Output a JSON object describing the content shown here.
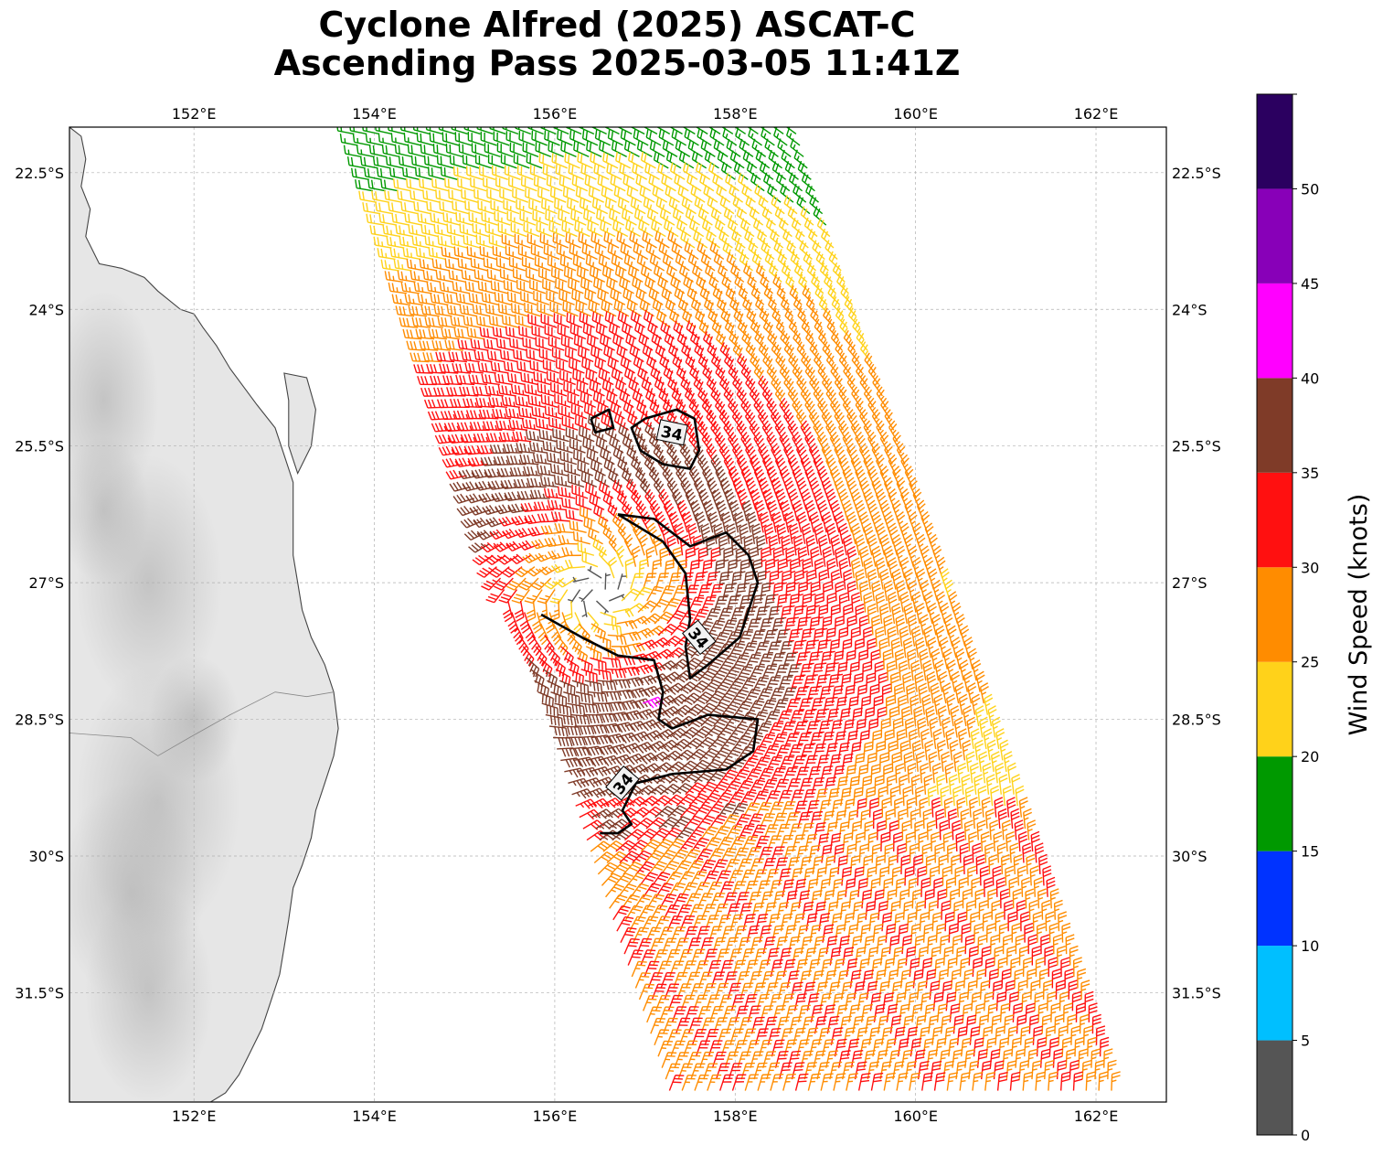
{
  "title": {
    "line1": "Cyclone Alfred (2025) ASCAT-C",
    "line2": "Ascending Pass 2025-03-05 11:41Z"
  },
  "map": {
    "lon_range": [
      150.62,
      162.78
    ],
    "lat_range": [
      -32.7,
      -22.0
    ],
    "lon_ticks": [
      "152°E",
      "154°E",
      "156°E",
      "158°E",
      "160°E",
      "162°E"
    ],
    "lat_ticks": [
      "22.5°S",
      "24°S",
      "25.5°S",
      "27°S",
      "28.5°S",
      "30°S",
      "31.5°S"
    ],
    "contour_label": "34",
    "colors": {
      "coast": "#444444",
      "land_base": "#e6e6e6",
      "contour": "#000000",
      "grid": "#b0b0b0"
    }
  },
  "colorbar": {
    "label": "Wind Speed (knots)",
    "ticks": [
      "0",
      "5",
      "10",
      "15",
      "20",
      "25",
      "30",
      "35",
      "40",
      "45",
      "50"
    ],
    "bins": [
      {
        "range": [
          0,
          5
        ],
        "color": "#555555"
      },
      {
        "range": [
          5,
          10
        ],
        "color": "#00bfff"
      },
      {
        "range": [
          10,
          15
        ],
        "color": "#0033ff"
      },
      {
        "range": [
          15,
          20
        ],
        "color": "#009900"
      },
      {
        "range": [
          20,
          25
        ],
        "color": "#ffd21a"
      },
      {
        "range": [
          25,
          30
        ],
        "color": "#ff8c00"
      },
      {
        "range": [
          30,
          35
        ],
        "color": "#ff1010"
      },
      {
        "range": [
          35,
          40
        ],
        "color": "#7f3b28"
      },
      {
        "range": [
          40,
          45
        ],
        "color": "#ff00ff"
      },
      {
        "range": [
          45,
          50
        ],
        "color": "#8800b8"
      },
      {
        "range": [
          50,
          55
        ],
        "color": "#2b0060"
      }
    ]
  },
  "cyclone_center": {
    "lon": 156.5,
    "lat": -27.1
  }
}
